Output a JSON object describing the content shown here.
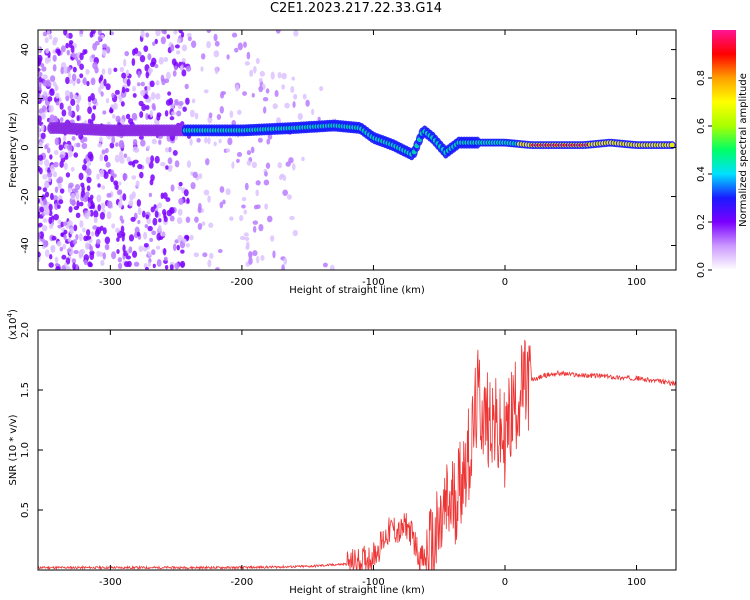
{
  "title": "C2E1.2023.217.22.33.G14",
  "chart_data": [
    {
      "type": "heatmap",
      "xlabel": "Height of straight line (km)",
      "ylabel": "Frequency (Hz)",
      "xlim": [
        -355,
        130
      ],
      "ylim": [
        -50,
        48
      ],
      "xticks": [
        -300,
        -200,
        -100,
        0,
        100
      ],
      "yticks": [
        -40,
        -20,
        0,
        20,
        40
      ],
      "colorbar": {
        "label": "Normalized spectral amplitude",
        "range": [
          0,
          1
        ],
        "ticks": [
          "0.0",
          "0.2",
          "0.4",
          "0.6",
          "0.8"
        ],
        "colors": [
          "#ffffff",
          "#cc99ff",
          "#7a00ff",
          "#1a1aff",
          "#00e0ff",
          "#00ff66",
          "#a8ff00",
          "#ffff00",
          "#ffa000",
          "#ff0000",
          "#ff1493"
        ]
      },
      "ridge": {
        "x": [
          -340,
          -300,
          -250,
          -240,
          -200,
          -160,
          -130,
          -110,
          -100,
          -85,
          -70,
          -62,
          -55,
          -45,
          -35,
          -20,
          0,
          20,
          60,
          80,
          100,
          130
        ],
        "y": [
          8,
          7,
          7,
          7,
          7,
          8,
          9,
          8,
          4,
          1,
          -3,
          7,
          4,
          -2,
          2,
          2,
          2,
          1,
          1,
          2,
          1,
          1
        ]
      }
    },
    {
      "type": "line",
      "xlabel": "Height of straight line (km)",
      "ylabel": "SNR (10 * v/v)",
      "scale_label": "(x10",
      "scale_exp": "4",
      "scale_close": ")",
      "xlim": [
        -355,
        130
      ],
      "ylim": [
        0,
        2.0
      ],
      "xticks": [
        -300,
        -200,
        -100,
        0,
        100
      ],
      "yticks": [
        "0.5",
        "1.0",
        "1.5",
        "2.0"
      ],
      "series": [
        {
          "color": "#ee3333",
          "x": [
            -355,
            -300,
            -250,
            -200,
            -150,
            -120,
            -110,
            -100,
            -95,
            -90,
            -85,
            -80,
            -75,
            -70,
            -65,
            -60,
            -55,
            -50,
            -45,
            -40,
            -35,
            -30,
            -25,
            -22,
            -20,
            -18,
            -15,
            -10,
            -5,
            0,
            5,
            10,
            15,
            20,
            30,
            40,
            50,
            60,
            70,
            80,
            90,
            100,
            110,
            120,
            130
          ],
          "y": [
            0.02,
            0.02,
            0.02,
            0.02,
            0.03,
            0.05,
            0.07,
            0.12,
            0.2,
            0.3,
            0.35,
            0.3,
            0.38,
            0.28,
            0.1,
            0.08,
            0.15,
            0.3,
            0.5,
            0.55,
            0.7,
            0.9,
            1.05,
            1.35,
            1.45,
            1.35,
            1.25,
            1.3,
            1.1,
            1.1,
            1.3,
            1.45,
            1.52,
            1.58,
            1.62,
            1.64,
            1.63,
            1.62,
            1.62,
            1.61,
            1.6,
            1.6,
            1.58,
            1.57,
            1.55
          ]
        }
      ]
    }
  ]
}
